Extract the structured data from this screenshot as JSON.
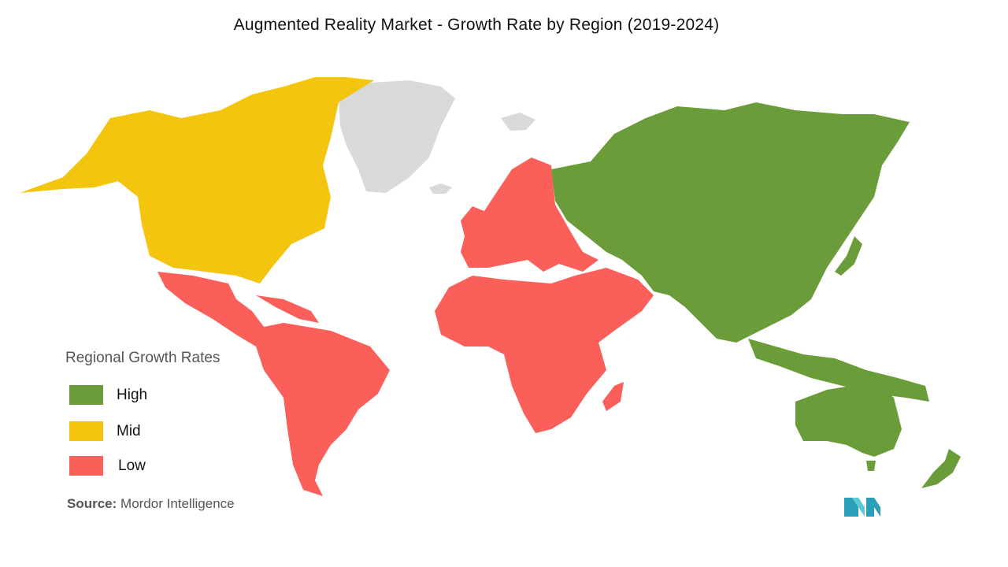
{
  "title": "Augmented Reality Market  - Growth Rate by Region (2019-2024)",
  "legend": {
    "title": "Regional Growth Rates",
    "items": [
      {
        "label": "High",
        "color": "#6b9c3a"
      },
      {
        "label": "Mid",
        "color": "#f4c50f"
      },
      {
        "label": "Low",
        "color": "#fb5f59"
      }
    ]
  },
  "no_data_color": "#d9d9d9",
  "regions": [
    {
      "name": "North America",
      "rate": "Mid"
    },
    {
      "name": "Latin America",
      "rate": "Low"
    },
    {
      "name": "Europe",
      "rate": "Low"
    },
    {
      "name": "Middle East and Africa",
      "rate": "Low"
    },
    {
      "name": "Asia-Pacific",
      "rate": "High"
    }
  ],
  "source": {
    "label": "Source:",
    "text": "Mordor Intelligence"
  },
  "logo_icon": "mordor-intelligence-logo"
}
